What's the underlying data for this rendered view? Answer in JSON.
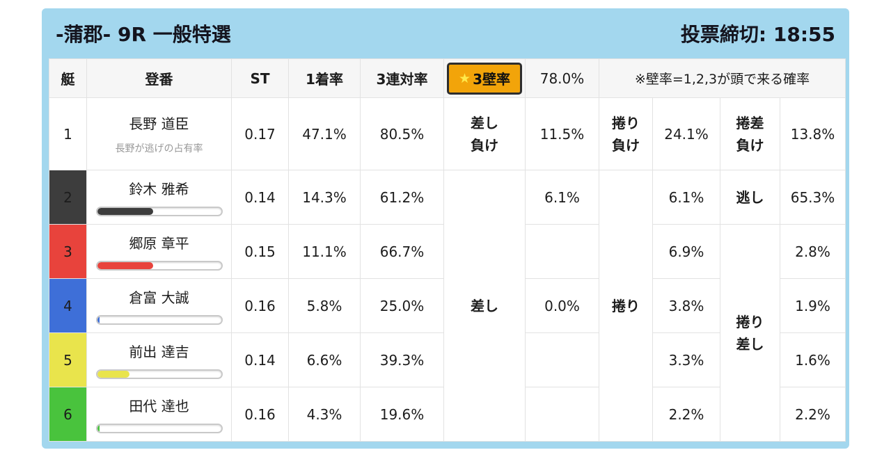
{
  "titlebar": {
    "title": "-蒲郡- 9R 一般特選",
    "deadline": "投票締切: 18:55"
  },
  "columns": {
    "boat": "艇",
    "entry": "登番",
    "st": "ST",
    "win": "1着率",
    "top3": "3連対率"
  },
  "wall": {
    "star": "★",
    "label": "3壁率",
    "value": "78.0%",
    "note": "※壁率=1,2,3が頭で来る確率"
  },
  "merged": {
    "sashi": "差し",
    "makuri": "捲り",
    "makuri_sashi": "捲り\n差し"
  },
  "rows": [
    {
      "num": "1",
      "name": "長野 道臣",
      "sub": "長野が逃げの占有率",
      "st": "0.17",
      "win": "47.1%",
      "top3": "80.5%",
      "l1": "差し\n負け",
      "v1": "11.5%",
      "l2": "捲り\n負け",
      "v2": "24.1%",
      "l3": "捲差\n負け",
      "v3": "13.8%",
      "color": "#ffffff"
    },
    {
      "num": "2",
      "name": "鈴木 雅希",
      "st": "0.14",
      "win": "14.3%",
      "top3": "61.2%",
      "v1": "6.1%",
      "v2": "6.1%",
      "l3": "逃し",
      "v3": "65.3%",
      "bar": 45,
      "color": "#3d3d3d"
    },
    {
      "num": "3",
      "name": "郷原 章平",
      "st": "0.15",
      "win": "11.1%",
      "top3": "66.7%",
      "v1": "",
      "v2": "6.9%",
      "v3": "2.8%",
      "bar": 45,
      "color": "#e8433c"
    },
    {
      "num": "4",
      "name": "倉富 大誠",
      "st": "0.16",
      "win": "5.8%",
      "top3": "25.0%",
      "v1": "0.0%",
      "v2": "3.8%",
      "v3": "1.9%",
      "bar": 2,
      "color": "#3e6fd8"
    },
    {
      "num": "5",
      "name": "前出 達吉",
      "st": "0.14",
      "win": "6.6%",
      "top3": "39.3%",
      "v1": "",
      "v2": "3.3%",
      "v3": "1.6%",
      "bar": 26,
      "color": "#e9e44c"
    },
    {
      "num": "6",
      "name": "田代 達也",
      "st": "0.16",
      "win": "4.3%",
      "top3": "19.6%",
      "v1": "",
      "v2": "2.2%",
      "v3": "2.2%",
      "bar": 2,
      "color": "#49c33d"
    }
  ],
  "colors": {
    "panel_bg": "#a3d7ee",
    "highlight": "#f2a40a",
    "highlight_border": "#2e2e2e"
  }
}
